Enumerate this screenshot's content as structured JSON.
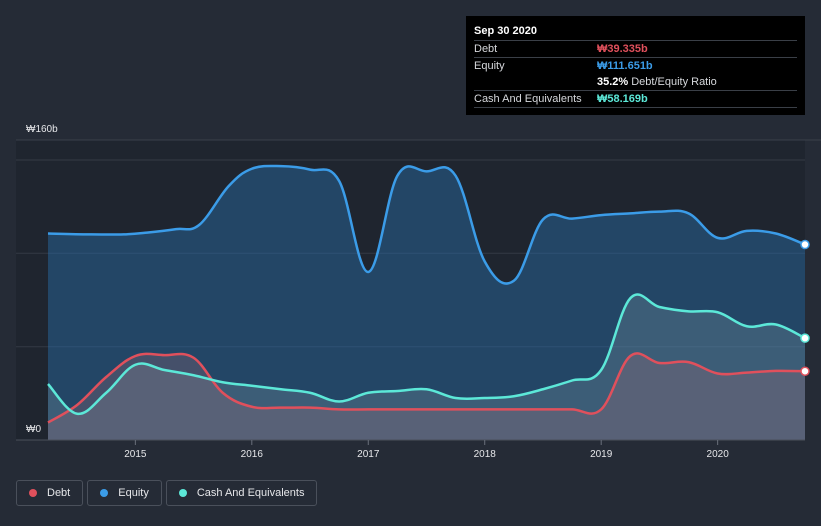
{
  "tooltip": {
    "date": "Sep 30 2020",
    "rows": [
      {
        "label": "Debt",
        "value": "₩39.335b",
        "color": "#e0505c"
      },
      {
        "label": "Equity",
        "value": "₩111.651b",
        "color": "#3b9ce8"
      },
      {
        "label": "",
        "value": "35.2%",
        "suffix": "Debt/Equity Ratio",
        "color": "#ffffff"
      },
      {
        "label": "Cash And Equivalents",
        "value": "₩58.169b",
        "color": "#5ce8d8"
      }
    ]
  },
  "legend": [
    {
      "label": "Debt",
      "color": "#e0505c"
    },
    {
      "label": "Equity",
      "color": "#3b9ce8"
    },
    {
      "label": "Cash And Equivalents",
      "color": "#5ce8d8"
    }
  ],
  "chart_data": {
    "type": "area",
    "ylim": [
      0,
      160
    ],
    "xlim": [
      2014.25,
      2020.75
    ],
    "y_tick_labels": [
      {
        "value": 160,
        "label": "₩160b"
      },
      {
        "value": 0,
        "label": "₩0"
      }
    ],
    "x_ticks": [
      2015,
      2016,
      2017,
      2018,
      2019,
      2020
    ],
    "highlight_date": 2020.75,
    "series": [
      {
        "name": "Equity",
        "color": "#3b9ce8",
        "x": [
          2014.25,
          2014.6,
          2014.9,
          2015.1,
          2015.35,
          2015.55,
          2015.8,
          2016.0,
          2016.25,
          2016.5,
          2016.75,
          2017.0,
          2017.25,
          2017.5,
          2017.75,
          2018.0,
          2018.25,
          2018.5,
          2018.75,
          2019.0,
          2019.25,
          2019.5,
          2019.75,
          2020.0,
          2020.25,
          2020.5,
          2020.75
        ],
        "values": [
          118,
          117.5,
          117.5,
          118.5,
          120.5,
          123,
          145,
          155,
          156.5,
          154.5,
          148,
          96,
          151,
          153.5,
          151,
          102,
          91,
          126,
          126.5,
          128.5,
          129.5,
          130.5,
          129.5,
          115.5,
          119.5,
          118,
          111.7
        ]
      },
      {
        "name": "Debt",
        "color": "#e0505c",
        "x": [
          2014.25,
          2014.5,
          2014.75,
          2015.0,
          2015.25,
          2015.5,
          2015.75,
          2016.0,
          2016.25,
          2016.5,
          2016.75,
          2017.0,
          2017.25,
          2017.5,
          2017.75,
          2018.0,
          2018.25,
          2018.5,
          2018.75,
          2019.0,
          2019.25,
          2019.5,
          2019.75,
          2020.0,
          2020.25,
          2020.5,
          2020.75
        ],
        "values": [
          10,
          20,
          36,
          48,
          48.5,
          47,
          27,
          19,
          18.5,
          18.5,
          17.5,
          17.5,
          17.5,
          17.5,
          17.5,
          17.5,
          17.5,
          17.5,
          17.5,
          17.5,
          48,
          44,
          44.5,
          38,
          38.5,
          39.5,
          39.3
        ]
      },
      {
        "name": "Cash And Equivalents",
        "color": "#5ce8d8",
        "x": [
          2014.25,
          2014.5,
          2014.75,
          2015.0,
          2015.25,
          2015.5,
          2015.75,
          2016.0,
          2016.25,
          2016.5,
          2016.75,
          2017.0,
          2017.25,
          2017.5,
          2017.75,
          2018.0,
          2018.25,
          2018.5,
          2018.75,
          2019.0,
          2019.25,
          2019.5,
          2019.75,
          2020.0,
          2020.25,
          2020.5,
          2020.75
        ],
        "values": [
          32,
          15,
          27,
          43,
          40,
          37,
          33,
          31,
          29,
          27,
          22,
          27,
          28,
          29,
          24,
          24,
          25,
          29,
          34,
          40,
          81,
          76,
          73.5,
          73,
          65,
          66,
          58.2
        ]
      }
    ]
  }
}
